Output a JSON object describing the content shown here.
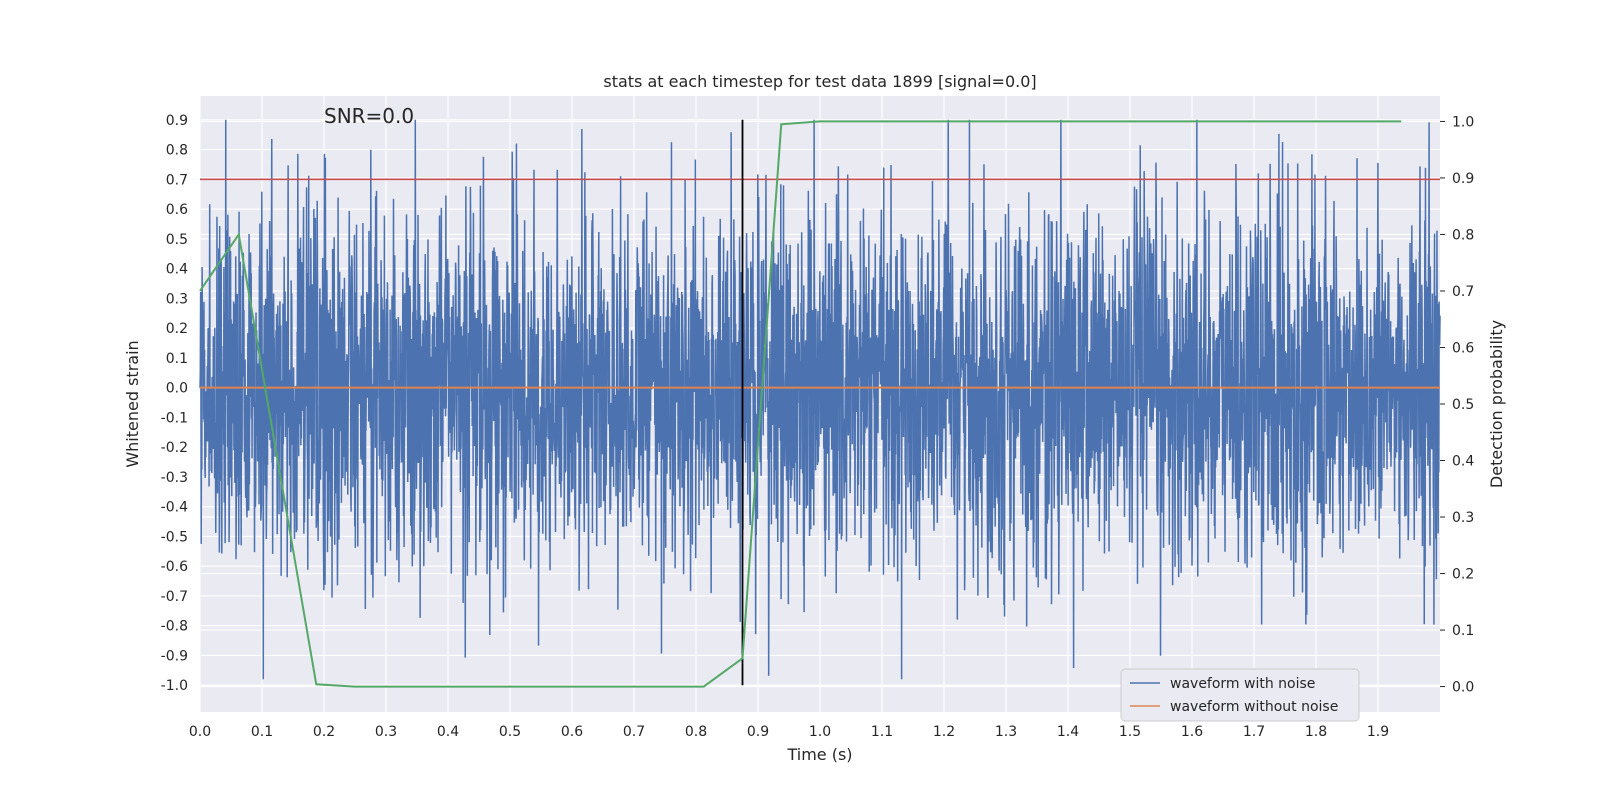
{
  "chart_data": {
    "type": "line",
    "title": "stats at each timestep for test data 1899 [signal=0.0]",
    "xlabel": "Time (s)",
    "ylabel": "Whitened strain",
    "ylabel_right": "Detection probability",
    "annotation": "SNR=0.0",
    "xlim": [
      0.0,
      2.0
    ],
    "ylim": [
      -1.09,
      0.98
    ],
    "ylim_right": [
      -0.045,
      1.045
    ],
    "x_ticks": [
      "0.0",
      "0.1",
      "0.2",
      "0.3",
      "0.4",
      "0.5",
      "0.6",
      "0.7",
      "0.8",
      "0.9",
      "1.0",
      "1.1",
      "1.2",
      "1.3",
      "1.4",
      "1.5",
      "1.6",
      "1.7",
      "1.8",
      "1.9"
    ],
    "y_ticks": [
      "0.9",
      "0.8",
      "0.7",
      "0.6",
      "0.5",
      "0.4",
      "0.3",
      "0.2",
      "0.1",
      "0.0",
      "-0.1",
      "-0.2",
      "-0.3",
      "-0.4",
      "-0.5",
      "-0.6",
      "-0.7",
      "-0.8",
      "-0.9",
      "-1.0"
    ],
    "y_ticks_right": [
      "1.0",
      "0.9",
      "0.8",
      "0.7",
      "0.6",
      "0.5",
      "0.4",
      "0.3",
      "0.2",
      "0.1",
      "0.0"
    ],
    "grid": true,
    "legend_position": "bottom-right",
    "series": [
      {
        "name": "waveform with noise",
        "color": "#4c72b0",
        "axis": "left",
        "kind": "noise",
        "n_points": 4096,
        "range_observed": [
          -0.98,
          0.9
        ]
      },
      {
        "name": "waveform without noise",
        "color": "#dd8452",
        "axis": "left",
        "x": [
          0.0,
          2.0
        ],
        "values": [
          0.0,
          0.0
        ]
      },
      {
        "color": "#55a868",
        "axis": "right",
        "x": [
          0.0,
          0.0625,
          0.1875,
          0.25,
          0.8125,
          0.875,
          0.9375,
          1.0,
          1.9375
        ],
        "values": [
          0.7,
          0.8,
          0.004,
          0.0,
          0.0,
          0.05,
          0.995,
          1.0,
          1.0
        ]
      }
    ],
    "hlines": [
      {
        "y": 0.7,
        "color": "#c44e52",
        "axis": "left"
      }
    ],
    "vlines": [
      {
        "x": 0.875,
        "y_from": -1.0,
        "y_to": 0.9,
        "color": "#000000",
        "axis": "left"
      }
    ]
  }
}
